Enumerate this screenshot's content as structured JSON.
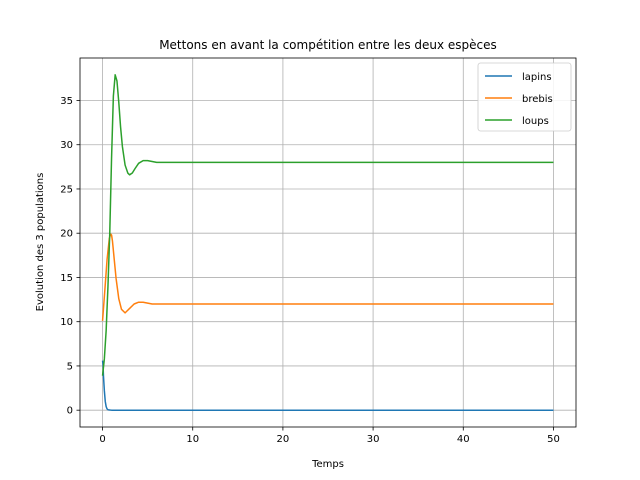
{
  "chart_data": {
    "type": "line",
    "title": "Mettons en avant la compétition entre les deux espèces",
    "xlabel": "Temps",
    "ylabel": "Evolution des 3 populations",
    "xlim": [
      -2.5,
      52.5
    ],
    "ylim": [
      -1.9,
      39.8
    ],
    "xticks": [
      0,
      10,
      20,
      30,
      40,
      50
    ],
    "yticks": [
      0,
      5,
      10,
      15,
      20,
      25,
      30,
      35
    ],
    "grid": true,
    "legend_position": "top-right",
    "series": [
      {
        "name": "lapins",
        "color": "#1f77b4",
        "x": [
          0,
          0.05,
          0.1,
          0.2,
          0.3,
          0.4,
          0.5,
          0.6,
          0.8,
          1,
          2,
          5,
          10,
          20,
          30,
          40,
          50
        ],
        "y": [
          5.6,
          5.2,
          3.9,
          2.2,
          1.0,
          0.4,
          0.15,
          0.05,
          0.02,
          0.0,
          0.0,
          0.0,
          0.0,
          0.0,
          0.0,
          0.0,
          0.0
        ]
      },
      {
        "name": "brebis",
        "color": "#ff7f0e",
        "x": [
          0,
          0.25,
          0.5,
          0.75,
          0.9,
          1.0,
          1.1,
          1.3,
          1.5,
          1.8,
          2.1,
          2.5,
          3.0,
          3.5,
          4.0,
          4.5,
          5.0,
          5.5,
          6.0,
          7.0,
          8.0,
          10,
          20,
          30,
          40,
          50
        ],
        "y": [
          10.1,
          13.5,
          17.0,
          19.4,
          19.9,
          19.8,
          19.1,
          17.0,
          14.9,
          12.6,
          11.4,
          11.0,
          11.5,
          12.0,
          12.2,
          12.2,
          12.1,
          12.0,
          12.0,
          12.0,
          12.0,
          12.0,
          12.0,
          12.0,
          12.0,
          12.0
        ]
      },
      {
        "name": "loups",
        "color": "#2ca02c",
        "x": [
          0,
          0.2,
          0.4,
          0.6,
          0.8,
          1.0,
          1.2,
          1.4,
          1.6,
          1.8,
          2.0,
          2.2,
          2.5,
          2.8,
          3.0,
          3.3,
          3.6,
          4.0,
          4.5,
          5.0,
          5.5,
          6.0,
          7.0,
          8.0,
          10,
          20,
          30,
          40,
          50
        ],
        "y": [
          3.9,
          5.8,
          9.0,
          14.0,
          20.0,
          28.5,
          35.5,
          37.9,
          37.2,
          34.8,
          32.0,
          29.8,
          27.7,
          26.8,
          26.6,
          26.8,
          27.3,
          27.9,
          28.2,
          28.2,
          28.1,
          28.0,
          28.0,
          28.0,
          28.0,
          28.0,
          28.0,
          28.0,
          28.0
        ]
      }
    ]
  }
}
